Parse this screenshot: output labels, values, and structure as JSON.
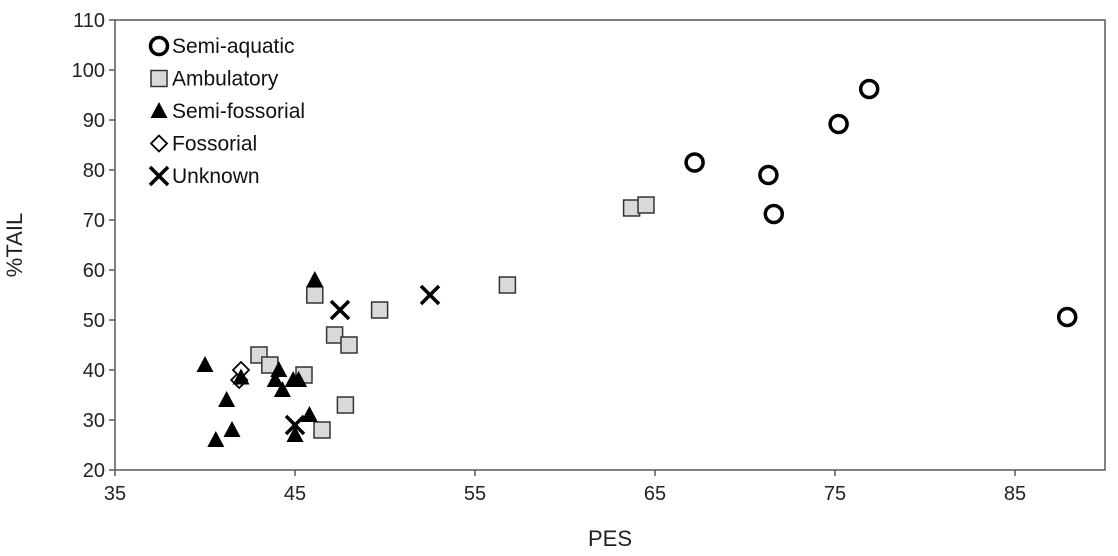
{
  "chart_data": {
    "type": "scatter",
    "title": "",
    "xlabel": "PES",
    "ylabel": "%TAIL",
    "xlim": [
      35,
      90
    ],
    "ylim": [
      20,
      110
    ],
    "xticks": [
      35,
      45,
      55,
      65,
      75,
      85
    ],
    "yticks": [
      20,
      30,
      40,
      50,
      60,
      70,
      80,
      90,
      100,
      110
    ],
    "grid": false,
    "legend_position": "top-left",
    "series": [
      {
        "name": "Semi-aquatic",
        "marker": "open-circle",
        "color": "#000000",
        "points": [
          [
            67.2,
            81.5
          ],
          [
            71.3,
            79.0
          ],
          [
            71.6,
            71.2
          ],
          [
            75.2,
            89.2
          ],
          [
            76.9,
            96.2
          ],
          [
            87.9,
            50.6
          ]
        ]
      },
      {
        "name": "Ambulatory",
        "marker": "gray-square",
        "color": "#d9d9d9",
        "points": [
          [
            43.0,
            43.0
          ],
          [
            43.6,
            41.0
          ],
          [
            45.5,
            39.0
          ],
          [
            46.1,
            55.0
          ],
          [
            46.5,
            28.0
          ],
          [
            47.2,
            47.0
          ],
          [
            48.0,
            45.0
          ],
          [
            47.8,
            33.0
          ],
          [
            49.7,
            52.0
          ],
          [
            56.8,
            57.0
          ],
          [
            63.7,
            72.4
          ],
          [
            64.5,
            73.0
          ]
        ]
      },
      {
        "name": "Semi-fossorial",
        "marker": "filled-triangle",
        "color": "#000000",
        "points": [
          [
            40.0,
            41.0
          ],
          [
            40.6,
            26.0
          ],
          [
            41.2,
            34.0
          ],
          [
            41.5,
            28.0
          ],
          [
            42.0,
            38.5
          ],
          [
            43.9,
            38.0
          ],
          [
            44.1,
            40.0
          ],
          [
            44.3,
            36.0
          ],
          [
            44.9,
            38.0
          ],
          [
            45.2,
            38.0
          ],
          [
            45.0,
            27.0
          ],
          [
            45.8,
            31.0
          ],
          [
            46.1,
            58.0
          ]
        ]
      },
      {
        "name": "Fossorial",
        "marker": "open-diamond",
        "color": "#000000",
        "points": [
          [
            41.9,
            38.0
          ],
          [
            42.0,
            40.0
          ]
        ]
      },
      {
        "name": "Unknown",
        "marker": "x-cross",
        "color": "#000000",
        "points": [
          [
            45.0,
            29.0
          ],
          [
            47.5,
            52.0
          ],
          [
            52.5,
            55.0
          ]
        ]
      }
    ]
  }
}
